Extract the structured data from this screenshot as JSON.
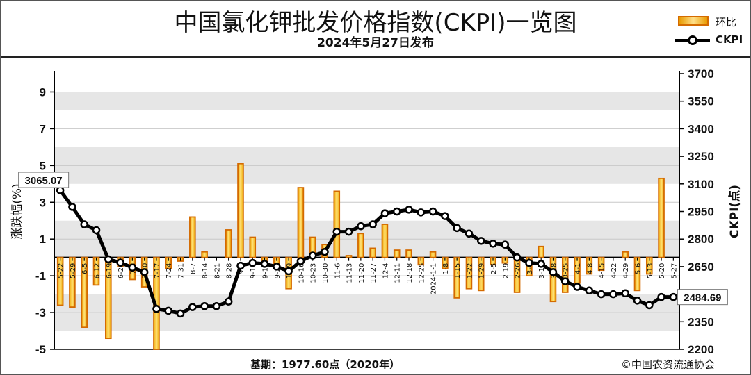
{
  "header": {
    "title": "中国氯化钾批发价格指数(CKPI)一览图",
    "subtitle": "2024年5月27日发布"
  },
  "legend": {
    "bar_label": "环比",
    "line_label": "CKPI"
  },
  "footer": {
    "base_text": "基期：1977.60点（2020年）",
    "copyright": "©中国农资流通协会"
  },
  "colors": {
    "bar_fill": "#f6c400",
    "bar_edge": "#d46a00",
    "line": "#000000",
    "grid_band": "#e6e6e6"
  },
  "chart_data": {
    "type": "bar+line",
    "title": "中国氯化钾批发价格指数(CKPI)一览图",
    "categories": [
      "5-22",
      "5-29",
      "6-5",
      "6-12",
      "6-19",
      "6-26",
      "7-3",
      "7-10",
      "7-17",
      "7-24",
      "7-31",
      "8-7",
      "8-14",
      "8-21",
      "8-28",
      "9-4",
      "9-11",
      "9-18",
      "9-25",
      "10-9",
      "10-16",
      "10-23",
      "10-30",
      "11-6",
      "11-13",
      "11-20",
      "11-27",
      "12-4",
      "12-11",
      "12-18",
      "12-25",
      "2024-1-1",
      "1-8",
      "1-15",
      "1-22",
      "1-29",
      "2-5",
      "2-19",
      "2-26",
      "3-4",
      "3-11",
      "3-18",
      "3-25",
      "4-1",
      "4-8",
      "4-15",
      "4-22",
      "4-29",
      "5-6",
      "5-13",
      "5-20",
      "5-27"
    ],
    "series": [
      {
        "name": "环比",
        "axis": "left",
        "values": [
          -2.6,
          -2.7,
          -3.8,
          -1.5,
          -4.4,
          -0.5,
          -1.2,
          -1.6,
          -5.0,
          -0.6,
          -0.2,
          2.2,
          0.3,
          0.0,
          1.5,
          5.1,
          1.1,
          -0.3,
          -0.6,
          -1.7,
          3.8,
          1.1,
          0.7,
          3.6,
          0.1,
          1.3,
          0.5,
          1.8,
          0.4,
          0.4,
          -0.4,
          0.3,
          -0.6,
          -2.2,
          -1.7,
          -1.8,
          -0.4,
          -0.3,
          -1.9,
          -1.0,
          0.6,
          -2.4,
          -1.9,
          -1.4,
          -0.9,
          -0.7,
          0.0,
          0.3,
          -1.8,
          -0.9,
          4.3,
          0.0
        ]
      },
      {
        "name": "CKPI",
        "axis": "right",
        "values": [
          3065.07,
          2975,
          2880,
          2848,
          2690,
          2672,
          2645,
          2620,
          2420,
          2410,
          2395,
          2430,
          2435,
          2435,
          2460,
          2655,
          2670,
          2665,
          2650,
          2625,
          2680,
          2710,
          2730,
          2840,
          2840,
          2870,
          2880,
          2940,
          2950,
          2960,
          2945,
          2950,
          2925,
          2860,
          2830,
          2790,
          2775,
          2770,
          2700,
          2670,
          2665,
          2620,
          2570,
          2540,
          2520,
          2500,
          2500,
          2505,
          2465,
          2440,
          2484.69,
          2484.69
        ]
      }
    ],
    "point_labels": {
      "first": "3065.07",
      "last": "2484.69"
    },
    "left_axis": {
      "label": "涨跌幅(%)",
      "ticks": [
        "9",
        "7",
        "5",
        "3",
        "1",
        "-1",
        "-3",
        "-5"
      ],
      "ylim": [
        -5,
        10
      ]
    },
    "right_axis": {
      "label": "CKPI(点)",
      "ticks": [
        "3700",
        "3550",
        "3400",
        "3250",
        "3100",
        "2950",
        "2800",
        "2650",
        "2500",
        "2350",
        "2200"
      ],
      "ylim": [
        2200,
        3700
      ]
    },
    "grid": true
  }
}
